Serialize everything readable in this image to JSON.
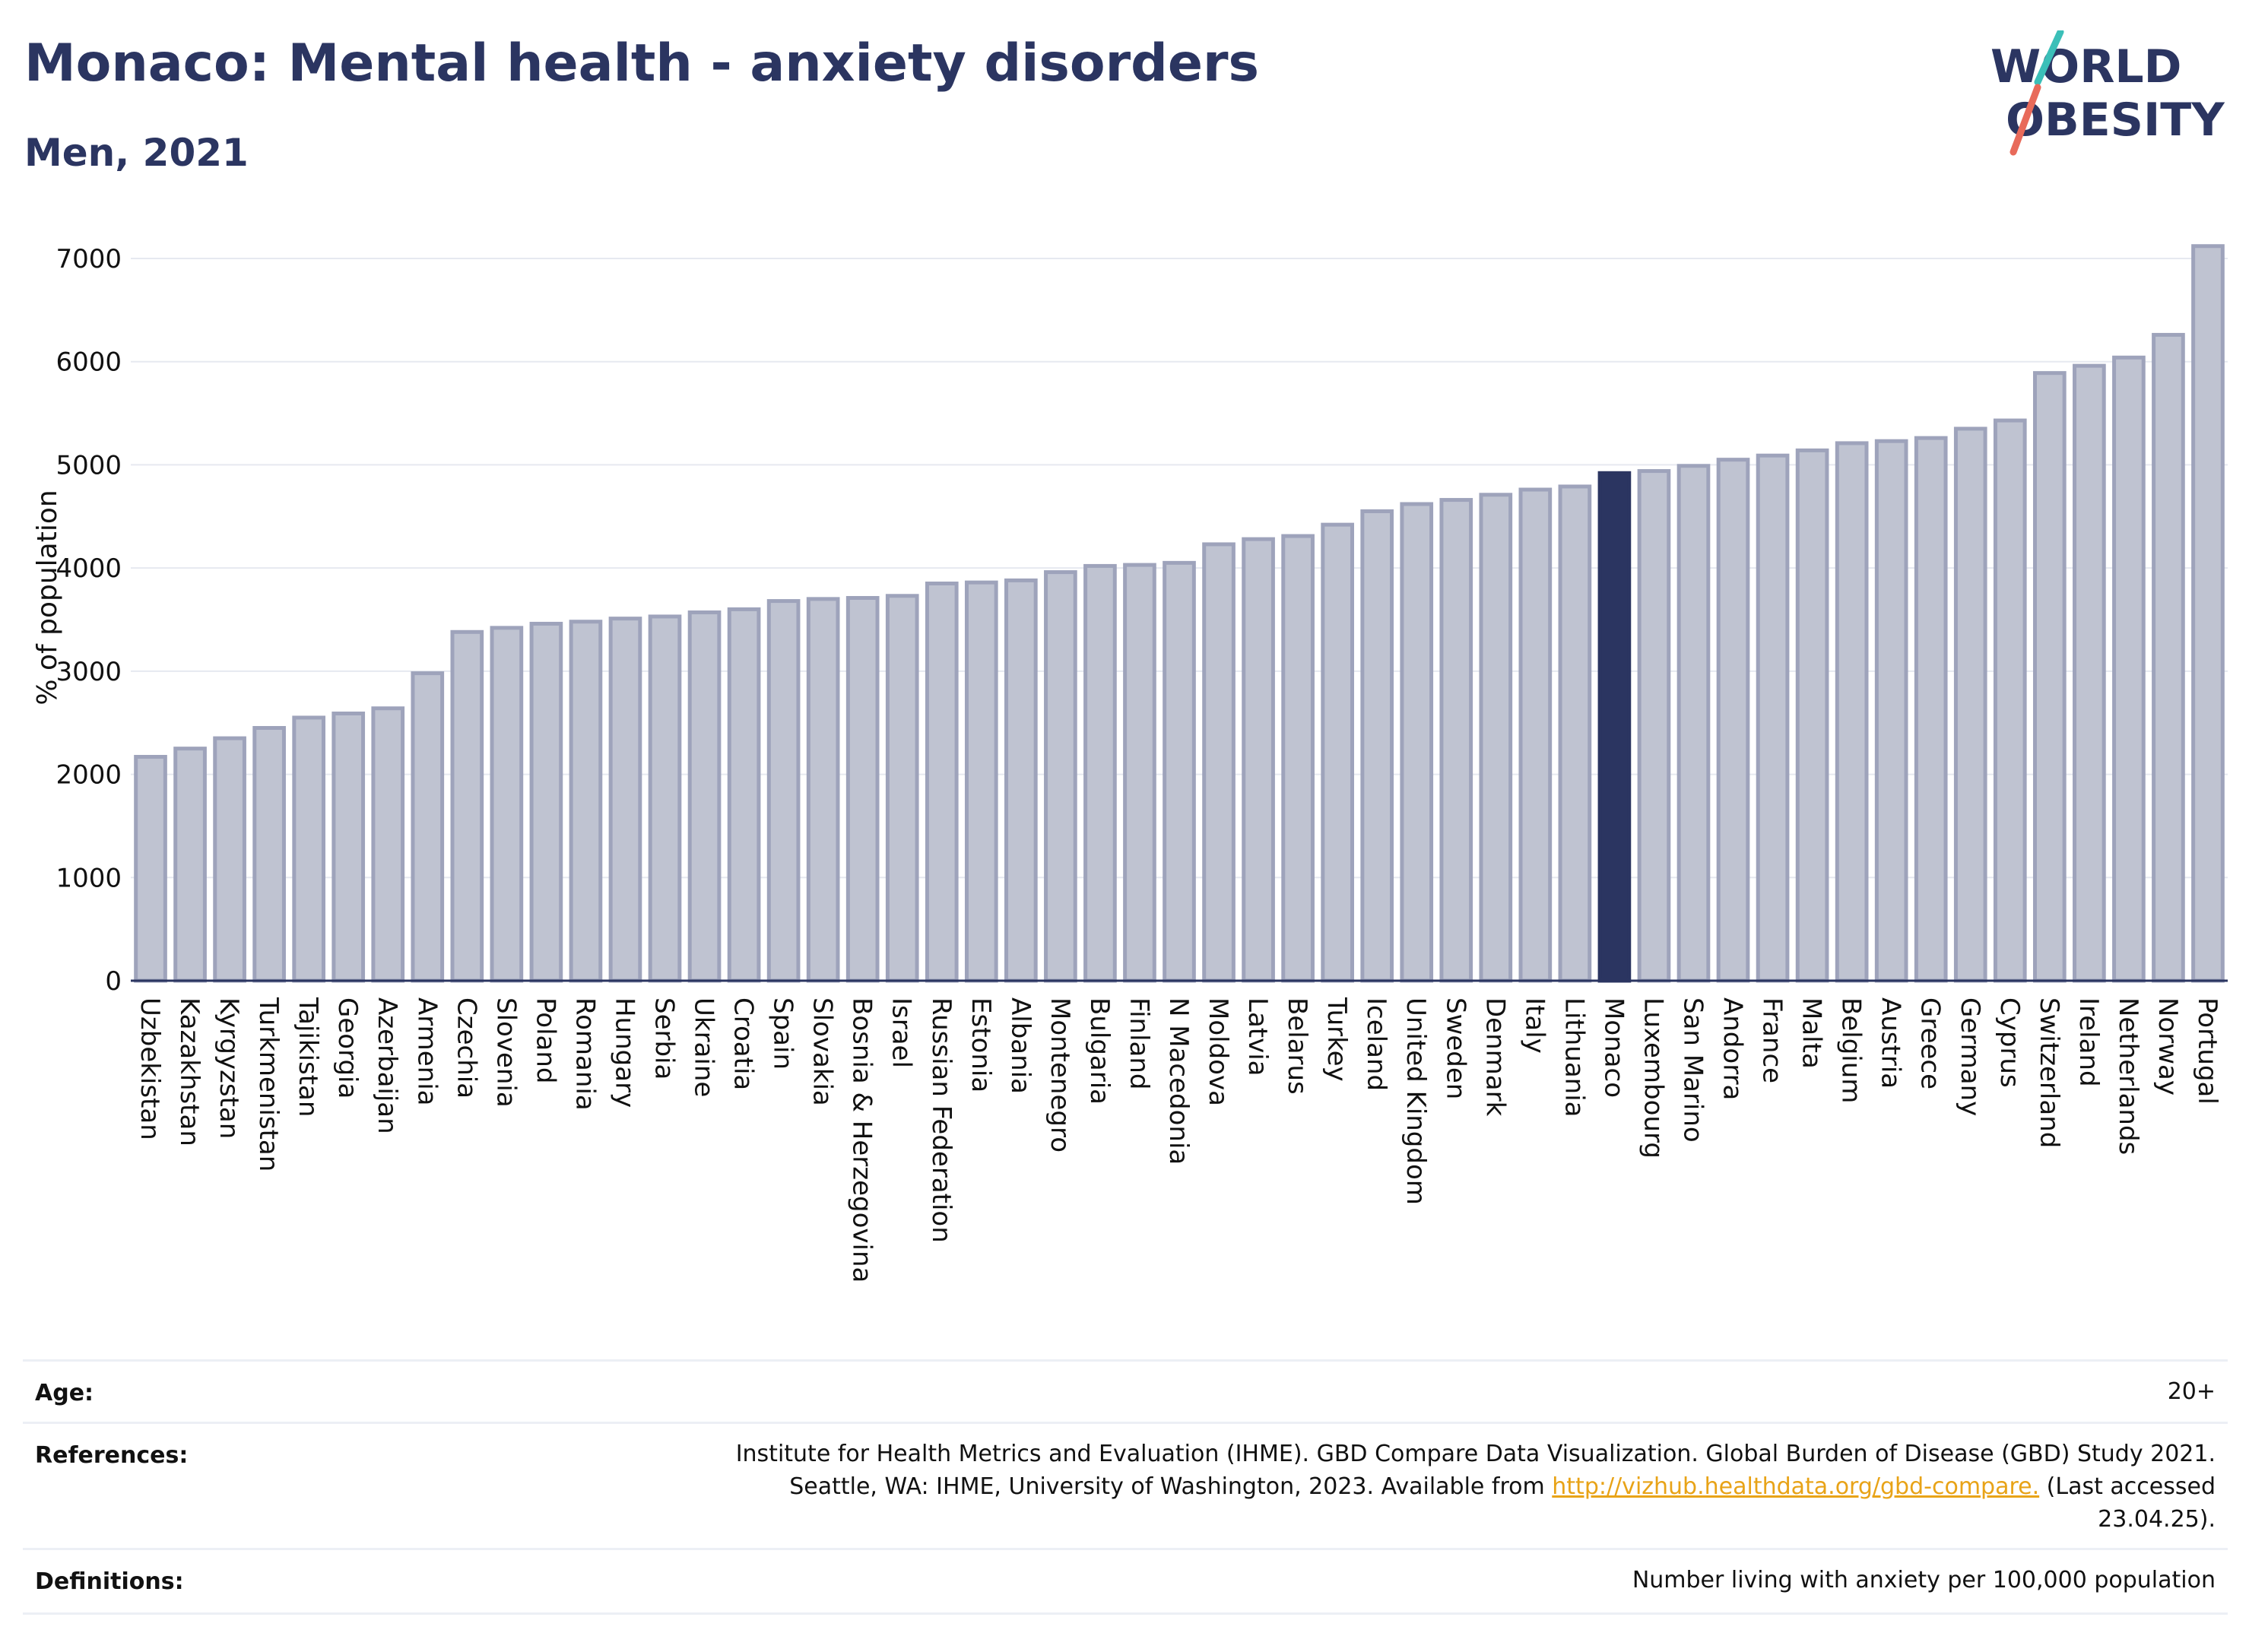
{
  "header": {
    "title": "Monaco: Mental health - anxiety disorders",
    "subtitle": "Men, 2021"
  },
  "logo": {
    "line1": "WORLD",
    "line2": "OBESITY"
  },
  "chart_data": {
    "type": "bar",
    "ylabel": "% of population",
    "ylim": [
      0,
      7000
    ],
    "yticks": [
      0,
      1000,
      2000,
      3000,
      4000,
      5000,
      6000,
      7000
    ],
    "grid": true,
    "highlight": "Monaco",
    "colors": {
      "bar": "#bfc3d1",
      "bar_border": "#9ea3bb",
      "highlight": "#2b3561",
      "axis": "#2b3561",
      "grid": "#e6e9f0"
    },
    "categories": [
      "Uzbekistan",
      "Kazakhstan",
      "Kyrgyzstan",
      "Turkmenistan",
      "Tajikistan",
      "Georgia",
      "Azerbaijan",
      "Armenia",
      "Czechia",
      "Slovenia",
      "Poland",
      "Romania",
      "Hungary",
      "Serbia",
      "Ukraine",
      "Croatia",
      "Spain",
      "Slovakia",
      "Bosnia & Herzegovina",
      "Israel",
      "Russian Federation",
      "Estonia",
      "Albania",
      "Montenegro",
      "Bulgaria",
      "Finland",
      "N Macedonia",
      "Moldova",
      "Latvia",
      "Belarus",
      "Turkey",
      "Iceland",
      "United Kingdom",
      "Sweden",
      "Denmark",
      "Italy",
      "Lithuania",
      "Monaco",
      "Luxembourg",
      "San Marino",
      "Andorra",
      "France",
      "Malta",
      "Belgium",
      "Austria",
      "Greece",
      "Germany",
      "Cyprus",
      "Switzerland",
      "Ireland",
      "Netherlands",
      "Norway",
      "Portugal"
    ],
    "values": [
      2170,
      2250,
      2350,
      2450,
      2550,
      2590,
      2640,
      2980,
      3380,
      3420,
      3460,
      3480,
      3510,
      3530,
      3570,
      3600,
      3680,
      3700,
      3710,
      3730,
      3850,
      3860,
      3880,
      3960,
      4020,
      4030,
      4050,
      4230,
      4280,
      4310,
      4420,
      4550,
      4620,
      4660,
      4710,
      4760,
      4790,
      4920,
      4940,
      4990,
      5050,
      5090,
      5140,
      5210,
      5230,
      5260,
      5350,
      5430,
      5890,
      5960,
      6040,
      6260,
      7120
    ]
  },
  "info": {
    "age_label": "Age:",
    "age_value": "20+",
    "references_label": "References:",
    "references_line1": "Institute for Health Metrics and Evaluation (IHME). GBD Compare Data Visualization. Global Burden of Disease (GBD) Study 2021.",
    "references_line2_pre": "Seattle, WA: IHME, University of Washington, 2023. Available from ",
    "references_link": "http://vizhub.healthdata.org/gbd-compare.",
    "references_line2_post": " (Last accessed",
    "references_line3": "23.04.25).",
    "definitions_label": "Definitions:",
    "definitions_value": "Number living with anxiety per 100,000 population"
  }
}
